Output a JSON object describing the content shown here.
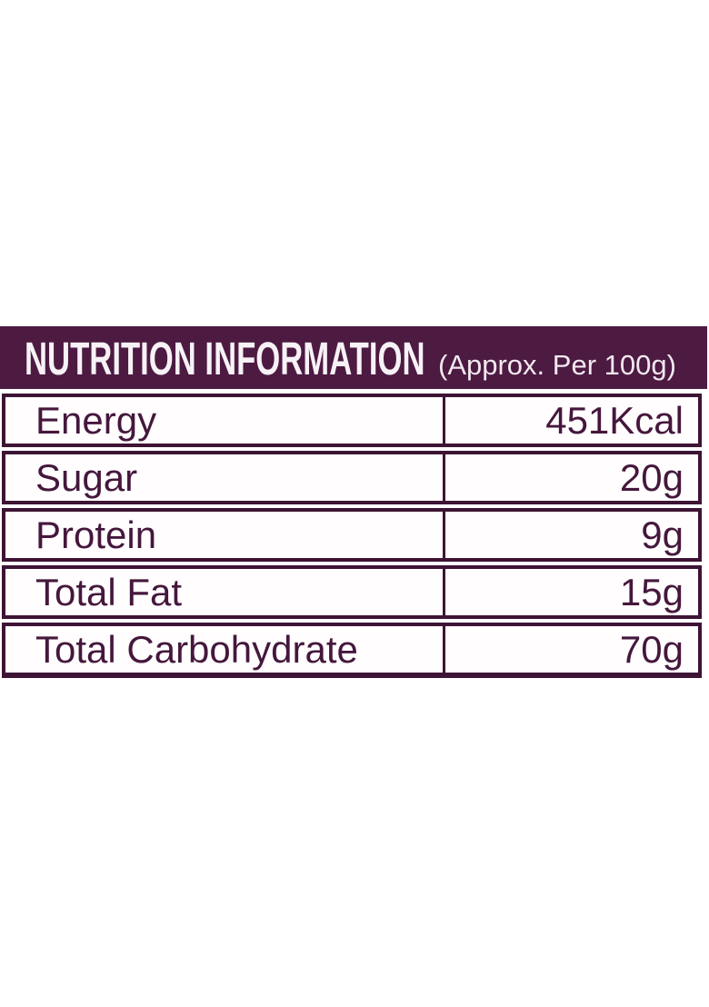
{
  "colors": {
    "page_bg": "#FFFFFF",
    "band_bg": "#4D1A42",
    "border": "#3E1435",
    "row_bg": "#FFFDFE",
    "row_text": "#45173C",
    "header_text": "#F7F2F6"
  },
  "header": {
    "title": "NUTRITION INFORMATION",
    "subtitle": "(Approx. Per 100g)"
  },
  "table": {
    "rows": [
      {
        "label": "Energy",
        "value": "451Kcal"
      },
      {
        "label": "Sugar",
        "value": "20g"
      },
      {
        "label": "Protein",
        "value": "9g"
      },
      {
        "label": "Total Fat",
        "value": "15g"
      },
      {
        "label": "Total Carbohydrate",
        "value": "70g"
      }
    ]
  }
}
